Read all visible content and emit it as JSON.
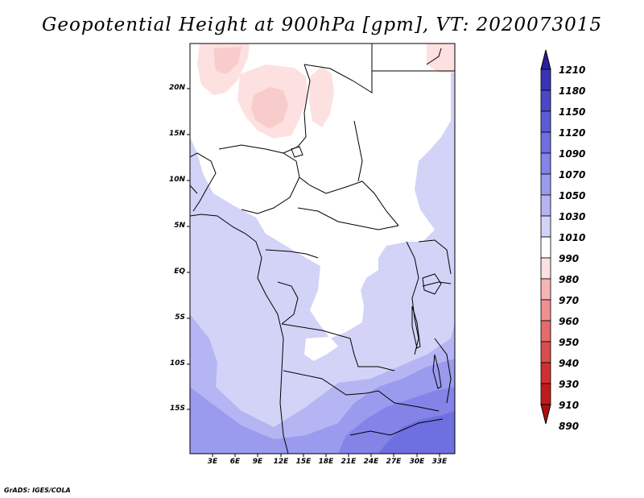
{
  "title": "Geopotential Height at 900hPa [gpm], VT: 2020073015",
  "credit": "GrADS: IGES/COLA",
  "map": {
    "variable": "Geopotential Height",
    "level": "900hPa",
    "units": "gpm",
    "valid_time": "2020073015",
    "region": "Central and Southern Africa",
    "lat_labels": [
      "20N",
      "15N",
      "10N",
      "5N",
      "EQ",
      "5S",
      "10S",
      "15S"
    ],
    "lon_labels": [
      "3E",
      "6E",
      "9E",
      "12E",
      "15E",
      "18E",
      "21E",
      "24E",
      "27E",
      "30E",
      "33E"
    ]
  },
  "colorbar": {
    "levels": [
      "1210",
      "1180",
      "1150",
      "1120",
      "1090",
      "1070",
      "1050",
      "1030",
      "1010",
      "990",
      "980",
      "970",
      "960",
      "950",
      "940",
      "930",
      "910",
      "890"
    ],
    "colors": [
      "#2a1f9e",
      "#3a33b5",
      "#4a47c8",
      "#5c5cd6",
      "#6e6fe0",
      "#8383e8",
      "#9a9aee",
      "#b5b5f3",
      "#d3d3f8",
      "#ffffff",
      "#fde0e0",
      "#f7b4b4",
      "#f09090",
      "#e56c6c",
      "#da4d4d",
      "#ce3030",
      "#c01b1b",
      "#b00f0f"
    ]
  }
}
